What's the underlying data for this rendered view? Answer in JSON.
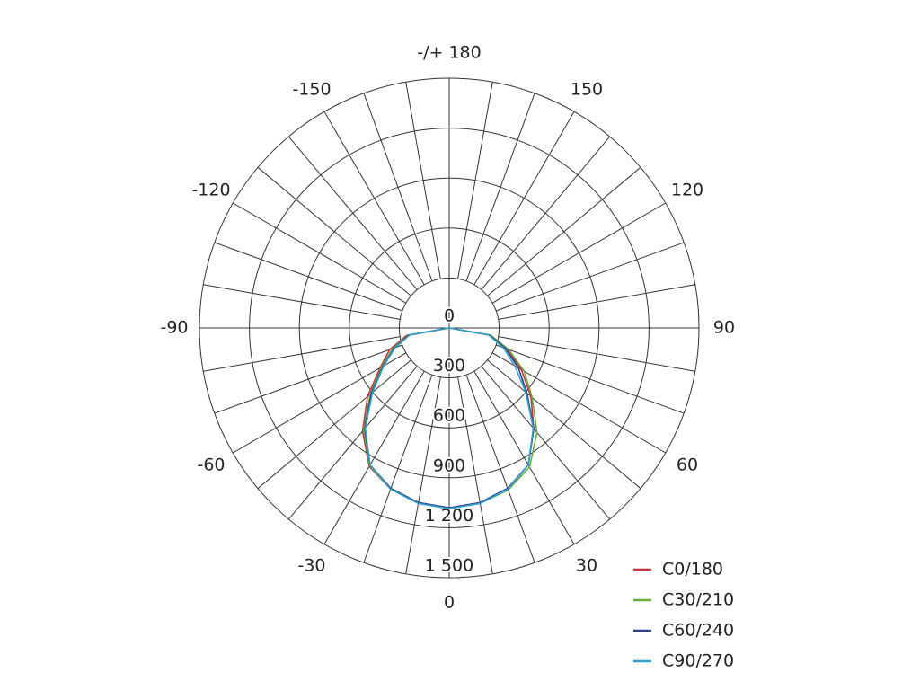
{
  "chart_data": {
    "type": "polar",
    "x": [
      -90,
      -80,
      -70,
      -60,
      -50,
      -40,
      -30,
      -20,
      -10,
      0,
      10,
      20,
      30,
      40,
      50,
      60,
      70,
      80,
      90
    ],
    "series": [
      {
        "name": "C0/180",
        "color": "#c8323a",
        "values": [
          0,
          260,
          380,
          480,
          640,
          810,
          960,
          1030,
          1065,
          1080,
          1070,
          1030,
          950,
          790,
          640,
          500,
          370,
          250,
          0
        ]
      },
      {
        "name": "C30/210",
        "color": "#6aaa3a",
        "values": [
          0,
          250,
          360,
          470,
          620,
          800,
          955,
          1030,
          1070,
          1085,
          1070,
          1035,
          965,
          820,
          650,
          520,
          380,
          255,
          0
        ]
      },
      {
        "name": "C60/240",
        "color": "#2e3f8f",
        "values": [
          0,
          245,
          350,
          460,
          610,
          790,
          950,
          1025,
          1065,
          1080,
          1065,
          1025,
          950,
          790,
          610,
          480,
          360,
          245,
          0
        ]
      },
      {
        "name": "C90/270",
        "color": "#2fa3d0",
        "values": [
          0,
          240,
          345,
          455,
          600,
          785,
          950,
          1030,
          1070,
          1085,
          1070,
          1030,
          950,
          785,
          600,
          455,
          345,
          240,
          0
        ]
      }
    ],
    "xlim": [
      -180,
      180
    ],
    "xticks": [
      {
        "value": 180,
        "label": "-/+ 180"
      },
      150,
      120,
      90,
      60,
      30,
      0,
      -30,
      -60,
      -90,
      -120,
      -150
    ],
    "ylim": [
      0,
      1500
    ],
    "yticks": [
      0,
      300,
      600,
      900,
      {
        "value": 1200,
        "label": "1 200"
      },
      {
        "value": 1500,
        "label": "1 500"
      }
    ],
    "grid": true,
    "legend": "lower right"
  }
}
